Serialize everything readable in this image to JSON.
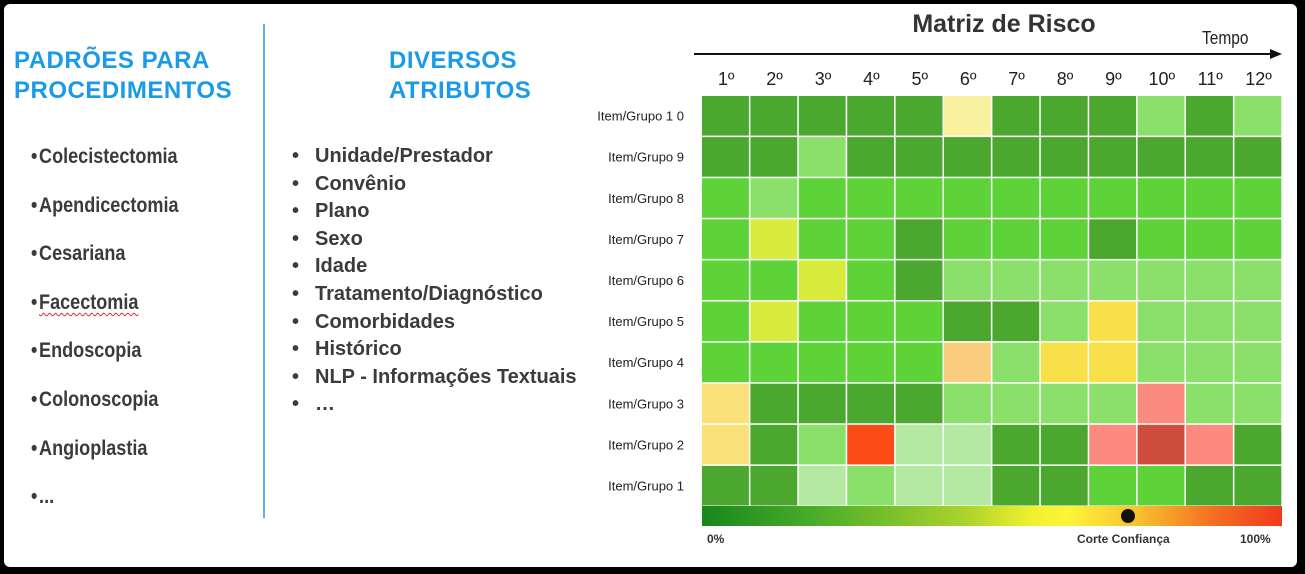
{
  "left_panel": {
    "title": "PADRÕES PARA PROCEDIMENTOS",
    "items": [
      "Colecistectomia",
      "Apendicectomia",
      "Cesariana",
      "Facectomia",
      "Endoscopia",
      "Colonoscopia",
      "Angioplastia",
      "..."
    ]
  },
  "middle_panel": {
    "title": "DIVERSOS ATRIBUTOS",
    "items": [
      "Unidade/Prestador",
      "Convênio",
      "Plano",
      "Sexo",
      "Idade",
      "Tratamento/Diagnóstico",
      "Comorbidades",
      "Histórico",
      "NLP - Informações Textuais",
      "…"
    ]
  },
  "matrix": {
    "title": "Matriz de Risco",
    "axis_label": "Tempo",
    "columns": [
      "1º",
      "2º",
      "3º",
      "4º",
      "5º",
      "6º",
      "7º",
      "8º",
      "9º",
      "10º",
      "11º",
      "12º"
    ],
    "rows": [
      "Item/Grupo 1 0",
      "Item/Grupo 9",
      "Item/Grupo 8",
      "Item/Grupo 7",
      "Item/Grupo 6",
      "Item/Grupo 5",
      "Item/Grupo 4",
      "Item/Grupo 3",
      "Item/Grupo 2",
      "Item/Grupo 1"
    ],
    "palette": {
      "D": "#4ca72e",
      "M": "#5dd339",
      "L": "#8be06b",
      "P": "#b4e9a2",
      "Y": "#f5f04a",
      "YC": "#f8f2a0",
      "YL": "#d9ec3d",
      "YO": "#f8e04a",
      "PS": "#f9cc7e",
      "S": "#fbe17a",
      "SP": "#fa8b7e",
      "OR": "#fb4c18",
      "DR": "#cd4d3e"
    },
    "cells": [
      [
        "D",
        "D",
        "D",
        "D",
        "D",
        "YC",
        "D",
        "D",
        "D",
        "L",
        "D",
        "L"
      ],
      [
        "D",
        "D",
        "L",
        "D",
        "D",
        "D",
        "D",
        "D",
        "D",
        "D",
        "D",
        "D"
      ],
      [
        "M",
        "L",
        "M",
        "M",
        "M",
        "M",
        "M",
        "M",
        "M",
        "M",
        "M",
        "M"
      ],
      [
        "M",
        "YL",
        "M",
        "M",
        "D",
        "M",
        "M",
        "M",
        "D",
        "M",
        "M",
        "M"
      ],
      [
        "M",
        "M",
        "YL",
        "M",
        "D",
        "L",
        "L",
        "L",
        "L",
        "L",
        "L",
        "L"
      ],
      [
        "M",
        "YL",
        "M",
        "M",
        "M",
        "D",
        "D",
        "L",
        "YO",
        "L",
        "L",
        "L"
      ],
      [
        "M",
        "M",
        "M",
        "M",
        "M",
        "PS",
        "L",
        "YO",
        "YO",
        "L",
        "L",
        "L"
      ],
      [
        "S",
        "D",
        "D",
        "D",
        "D",
        "L",
        "L",
        "L",
        "L",
        "SP",
        "L",
        "L"
      ],
      [
        "S",
        "D",
        "L",
        "OR",
        "P",
        "P",
        "D",
        "D",
        "SP",
        "DR",
        "SP",
        "D"
      ],
      [
        "D",
        "D",
        "P",
        "L",
        "P",
        "P",
        "D",
        "D",
        "M",
        "M",
        "D",
        "D"
      ]
    ],
    "scale": {
      "min_label": "0%",
      "cut_label": "Corte Confiança",
      "max_label": "100%"
    }
  }
}
